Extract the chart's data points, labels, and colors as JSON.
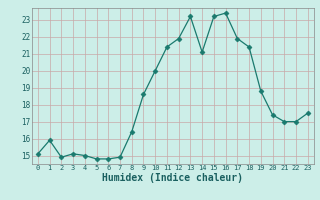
{
  "x": [
    0,
    1,
    2,
    3,
    4,
    5,
    6,
    7,
    8,
    9,
    10,
    11,
    12,
    13,
    14,
    15,
    16,
    17,
    18,
    19,
    20,
    21,
    22,
    23
  ],
  "y": [
    15.1,
    15.9,
    14.9,
    15.1,
    15.0,
    14.8,
    14.8,
    14.9,
    16.4,
    18.6,
    20.0,
    21.4,
    21.9,
    23.2,
    21.1,
    23.2,
    23.4,
    21.9,
    21.4,
    18.8,
    17.4,
    17.0,
    17.0,
    17.5
  ],
  "line_color": "#1a7a6e",
  "marker": "D",
  "marker_size": 2.5,
  "bg_color": "#cceee8",
  "grid_color_h": "#c8a8a8",
  "grid_color_v": "#c8a8a8",
  "xlabel": "Humidex (Indice chaleur)",
  "ylabel_ticks": [
    15,
    16,
    17,
    18,
    19,
    20,
    21,
    22,
    23
  ],
  "xtick_labels": [
    "0",
    "1",
    "2",
    "3",
    "4",
    "5",
    "6",
    "7",
    "8",
    "9",
    "10",
    "11",
    "12",
    "13",
    "14",
    "15",
    "16",
    "17",
    "18",
    "19",
    "20",
    "21",
    "22",
    "23"
  ],
  "ylim": [
    14.5,
    23.7
  ],
  "xlim": [
    -0.5,
    23.5
  ]
}
